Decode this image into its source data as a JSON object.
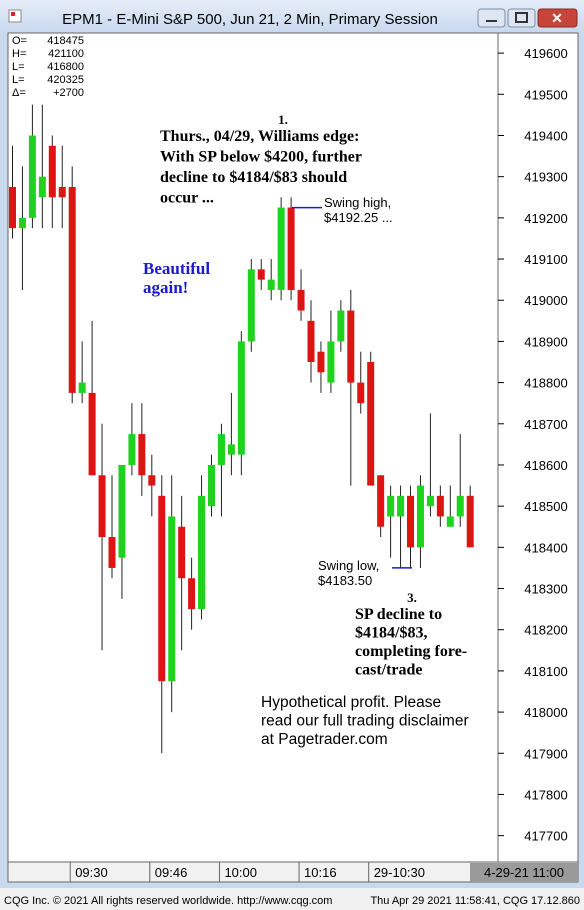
{
  "chart_data": {
    "type": "candlestick",
    "title": "EPM1 - E-Mini S&P 500, Jun 21, 2 Min, Primary Session",
    "readout": [
      {
        "label": "O=",
        "value": "418475"
      },
      {
        "label": "H=",
        "value": "421100"
      },
      {
        "label": "L=",
        "value": "416800"
      },
      {
        "label": "L=",
        "value": "420325"
      },
      {
        "label": "Δ=",
        "value": "+2700"
      }
    ],
    "categories": [
      null,
      null,
      null,
      null,
      null,
      null,
      "09:30",
      null,
      null,
      null,
      null,
      null,
      null,
      null,
      "09:46",
      null,
      null,
      null,
      null,
      null,
      null,
      "10:00",
      null,
      null,
      null,
      null,
      null,
      null,
      null,
      "10:16",
      null,
      null,
      null,
      null,
      null,
      null,
      "29-10:30",
      null,
      null,
      null,
      null,
      null,
      null,
      null,
      null,
      null,
      null
    ],
    "open": [
      419275,
      419175,
      419200,
      419250,
      419375,
      419275,
      419275,
      418775,
      418775,
      418575,
      418425,
      418375,
      418600,
      418675,
      418575,
      418525,
      418075,
      418450,
      418325,
      418250,
      418500,
      418600,
      418625,
      418625,
      418900,
      419075,
      419025,
      419025,
      419225,
      419025,
      418950,
      418875,
      418800,
      418900,
      418975,
      418800,
      418850,
      418575,
      418475,
      418475,
      418525,
      418400,
      418500,
      418525,
      418450,
      418475,
      418525
    ],
    "high": [
      419375,
      419325,
      419475,
      419475,
      419400,
      419375,
      419325,
      418900,
      418950,
      418700,
      418575,
      418600,
      418750,
      418750,
      418625,
      418575,
      418575,
      418525,
      418375,
      418575,
      418625,
      418700,
      418775,
      418925,
      419100,
      419100,
      419100,
      419250,
      419250,
      419075,
      419000,
      418900,
      418975,
      419000,
      419025,
      418875,
      418875,
      418575,
      418550,
      418550,
      418550,
      418575,
      418725,
      418550,
      418550,
      418675,
      418550
    ],
    "low": [
      419150,
      419025,
      419175,
      419175,
      419175,
      419175,
      418750,
      418750,
      418575,
      418150,
      418325,
      418275,
      418575,
      418525,
      418475,
      417900,
      418000,
      418150,
      418200,
      418225,
      418475,
      418475,
      418575,
      418575,
      418875,
      419025,
      419000,
      419000,
      419000,
      418950,
      418800,
      418775,
      418775,
      418875,
      418550,
      418725,
      418550,
      418425,
      418375,
      418350,
      418350,
      418350,
      418475,
      418450,
      418450,
      418450,
      418400
    ],
    "close": [
      419175,
      419200,
      419400,
      419300,
      419250,
      419250,
      418775,
      418800,
      418575,
      418425,
      418350,
      418600,
      418675,
      418575,
      418550,
      418075,
      418475,
      418325,
      418250,
      418525,
      418600,
      418675,
      418650,
      418900,
      419075,
      419050,
      419050,
      419225,
      419025,
      418975,
      418850,
      418825,
      418900,
      418975,
      418800,
      418750,
      418550,
      418450,
      418525,
      418525,
      418400,
      418550,
      418525,
      418475,
      418475,
      418525,
      418400
    ],
    "up_color": "#1ed21e",
    "down_color": "#dc1414",
    "ylim": [
      417636,
      419644
    ],
    "yticks": [
      417700,
      417800,
      417900,
      418000,
      418100,
      418200,
      418300,
      418400,
      418500,
      418600,
      418700,
      418800,
      418900,
      419000,
      419100,
      419200,
      419300,
      419400,
      419500,
      419600
    ],
    "x_cursor_label": "4-29-21 11:00",
    "annotations": [
      {
        "lines": [
          "1."
        ],
        "color": "#000000"
      },
      {
        "lines": [
          "Thurs., 04/29, Williams edge:",
          "With SP below $4200, further",
          "decline to $4184/$83 should",
          "occur ..."
        ],
        "color": "#000000"
      },
      {
        "lines": [
          "Swing high,",
          "$4192.25 ..."
        ],
        "color": "#000000",
        "level": 419225
      },
      {
        "lines": [
          "Beautiful",
          "again!"
        ],
        "color": "#1a1ad2"
      },
      {
        "lines": [
          "Swing low,",
          "$4183.50"
        ],
        "color": "#000000",
        "level": 418350
      },
      {
        "lines": [
          "3."
        ],
        "color": "#000000"
      },
      {
        "lines": [
          "SP decline to",
          "$4184/$83,",
          "completing fore-",
          "cast/trade"
        ],
        "color": "#000000"
      },
      {
        "lines": [
          "Hypothetical profit. Please",
          "read our full trading disclaimer",
          "at Pagetrader.com"
        ],
        "color": "#000000"
      }
    ]
  },
  "footer": {
    "left": "CQG Inc. © 2021 All rights reserved worldwide. http://www.cqg.com",
    "right": "Thu Apr 29 2021 11:58:41, CQG 17.12.860"
  }
}
